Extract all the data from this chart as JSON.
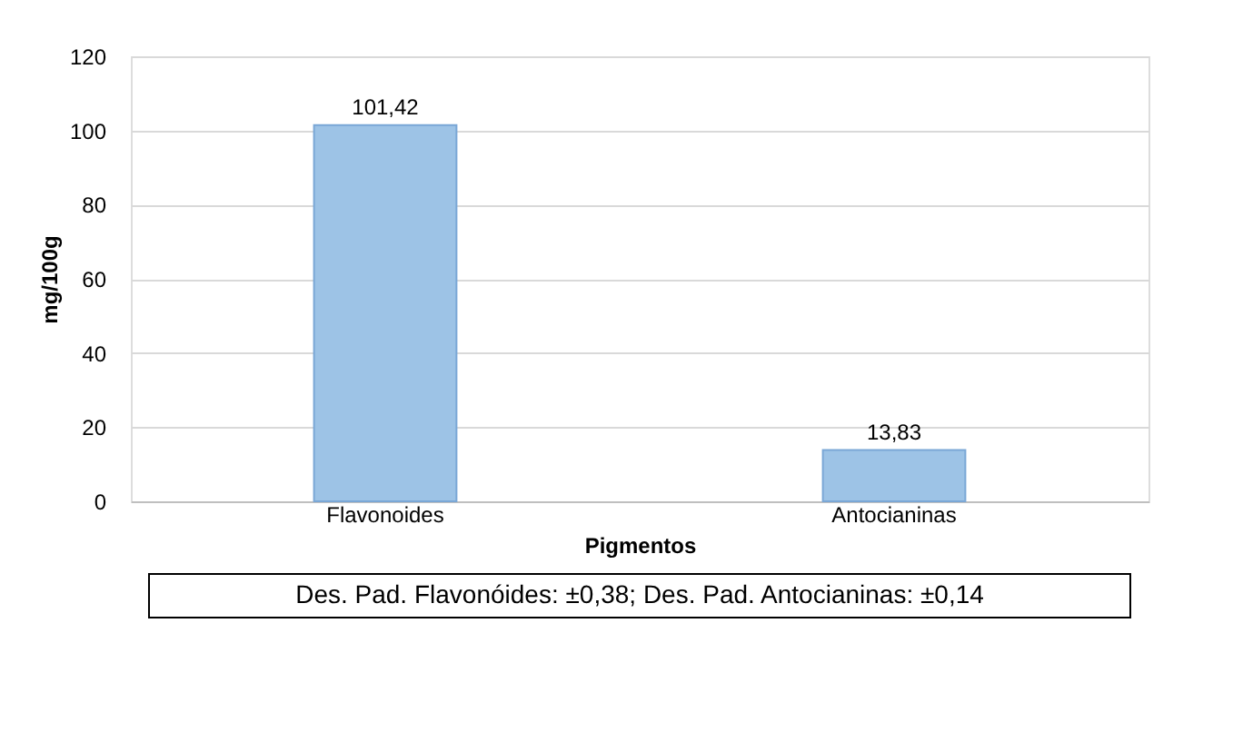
{
  "chart_data": {
    "type": "bar",
    "categories": [
      "Flavonoides",
      "Antocianinas"
    ],
    "values": [
      101.42,
      13.83
    ],
    "color": "#9dc3e6",
    "value_labels": [
      "101,42",
      "13,83"
    ],
    "xlabel": "Pigmentos",
    "ylabel": "mg/100g",
    "ylim": [
      0,
      120
    ],
    "yticks": [
      0,
      20,
      40,
      60,
      80,
      100,
      120
    ],
    "grid": "y",
    "annotations": [
      "Des. Pad. Flavonóides: ±0,38; Des. Pad. Antocianinas: ±0,14"
    ]
  }
}
